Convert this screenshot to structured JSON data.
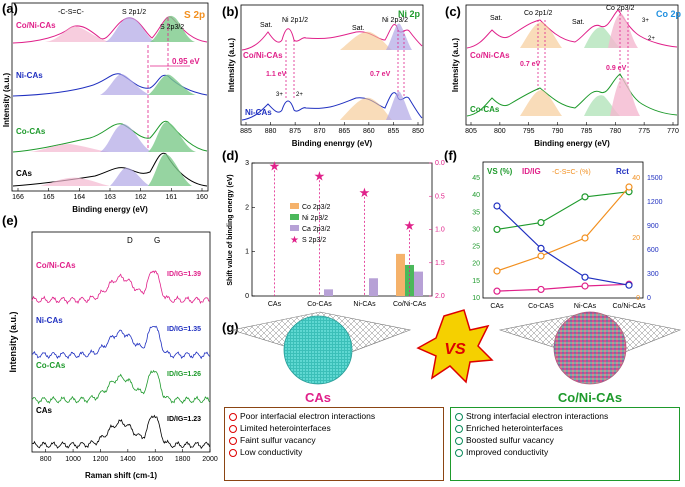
{
  "panel_a": {
    "label": "(a)",
    "title": "S 2p",
    "xlabel": "Binding energy (eV)",
    "ylabel": "Intensity (a.u.)",
    "xticks": [
      "166",
      "165",
      "164",
      "163",
      "162",
      "161",
      "160"
    ],
    "samples": [
      "Co/Ni-CAs",
      "Ni-CAs",
      "Co-CAs",
      "CAs"
    ],
    "peak_labels": [
      "-C-S=C-",
      "S 2p1/2",
      "S 2p3/2"
    ],
    "shift": "0.95 eV"
  },
  "panel_b": {
    "label": "(b)",
    "title": "Ni 2p",
    "xlabel": "Binding enenrgy (eV)",
    "ylabel": "Intensity (a.u.)",
    "xticks": [
      "885",
      "880",
      "875",
      "870",
      "865",
      "860",
      "855",
      "850"
    ],
    "samples": [
      "Co/Ni-CAs",
      "Ni-CAs"
    ],
    "peak_labels": [
      "Ni 2p1/2",
      "Ni 2p3/2",
      "Sat.",
      "3+",
      "2+"
    ],
    "shifts": [
      "1.1 eV",
      "0.7 eV"
    ]
  },
  "panel_c": {
    "label": "(c)",
    "title": "Co 2p",
    "xlabel": "Binding energy (eV)",
    "ylabel": "Intensity (a.u.)",
    "xticks": [
      "805",
      "800",
      "795",
      "790",
      "785",
      "780",
      "775",
      "770"
    ],
    "samples": [
      "Co/Ni-CAs",
      "Co-CAs"
    ],
    "peak_labels": [
      "Co 2p1/2",
      "Co 2p3/2",
      "Sat.",
      "3+",
      "2+"
    ],
    "shifts": [
      "0.7 eV",
      "0.9 eV"
    ]
  },
  "chart_data": [
    {
      "type": "bar",
      "panel": "(d)",
      "ylabel": "Shift value of binding energy (eV)",
      "y2label": "",
      "categories": [
        "CAs",
        "Co-CAs",
        "Ni-CAs",
        "Co/Ni-CAs"
      ],
      "ylim": [
        0,
        3
      ],
      "y2lim": [
        2.0,
        0
      ],
      "yticks": [
        "0",
        "1",
        "2",
        "3"
      ],
      "y2ticks": [
        "0.0",
        "0.5",
        "1.0",
        "1.5",
        "2.0"
      ],
      "series": [
        {
          "name": "Co 2p3/2",
          "color": "#f5b26b",
          "values": [
            0,
            0,
            0,
            0.95
          ]
        },
        {
          "name": "Ni 2p3/2",
          "color": "#4bb85b",
          "values": [
            0,
            0,
            0,
            0.7
          ]
        },
        {
          "name": "Ca 2p3/2",
          "color": "#b7a1d6",
          "values": [
            0,
            0.15,
            0.4,
            0.55
          ]
        },
        {
          "name": "S 2p3/2",
          "color": "#e0218a",
          "type": "star",
          "values": [
            0.05,
            0.2,
            0.45,
            0.95
          ]
        }
      ]
    },
    {
      "type": "line",
      "panel": "(f)",
      "categories": [
        "CAs",
        "Co-CAS",
        "Ni-CAs",
        "Co/Ni-CAs"
      ],
      "legend": [
        "VS (%)",
        "ID/IG",
        "-C-S=C- (%)",
        "Rct"
      ],
      "y1lim": [
        10,
        45
      ],
      "y1ticks": [
        "10",
        "15",
        "20",
        "25",
        "30",
        "35",
        "40",
        "45"
      ],
      "y2lim": [
        0,
        40
      ],
      "y2ticks": [
        "0",
        "20",
        "40"
      ],
      "y3lim": [
        0,
        1500
      ],
      "y3ticks": [
        "0",
        "300",
        "600",
        "900",
        "1200",
        "1500"
      ],
      "series": [
        {
          "name": "VS (%)",
          "color": "#1e9a2c",
          "axis": "y1",
          "values": [
            30,
            32,
            39.5,
            41
          ]
        },
        {
          "name": "ID/IG",
          "color": "#e0218a",
          "axis": "y1",
          "values": [
            12,
            12.5,
            13.5,
            14
          ]
        },
        {
          "name": "-C-S=C- (%)",
          "color": "#f29020",
          "axis": "y2",
          "values": [
            9,
            14,
            20,
            37
          ]
        },
        {
          "name": "Rct",
          "color": "#2030c0",
          "axis": "y3",
          "values": [
            1150,
            620,
            260,
            160
          ]
        }
      ]
    },
    {
      "type": "line",
      "panel": "(e)",
      "xlabel": "Raman shift (cm-1)",
      "ylabel": "Intensity (a.u.)",
      "xticks": [
        "800",
        "1000",
        "1200",
        "1400",
        "1600",
        "1800",
        "2000"
      ],
      "xlim": [
        700,
        2000
      ],
      "peaks": [
        "D",
        "G"
      ],
      "series": [
        {
          "name": "Co/Ni-CAs",
          "color": "#e0218a",
          "ratio": "ID/IG=1.39",
          "value": 1.39
        },
        {
          "name": "Ni-CAs",
          "color": "#2030c0",
          "ratio": "ID/IG=1.35",
          "value": 1.35
        },
        {
          "name": "Co-CAs",
          "color": "#1e9a2c",
          "ratio": "ID/IG=1.26",
          "value": 1.26
        },
        {
          "name": "CAs",
          "color": "#000000",
          "ratio": "ID/IG=1.23",
          "value": 1.23
        }
      ]
    }
  ],
  "panel_d_labels": {
    "label": "(d)",
    "star_legend": "S 2p3/2"
  },
  "panel_e_labels": {
    "label": "(e)"
  },
  "panel_f_labels": {
    "label": "(f)",
    "left_axis": "VS (%)",
    "mid": "ID/IG",
    "css": "-C-S=C- (%)",
    "rct": "Rct"
  },
  "panel_g": {
    "label": "(g)",
    "vs": "VS",
    "left_name": "CAs",
    "right_name": "Co/Ni-CAs",
    "left_points": [
      "Poor interfacial electron interactions",
      "Limited heterointerfaces",
      "Faint sulfur vacancy",
      "Low conductivity"
    ],
    "right_points": [
      "Strong interfacial electron interactions",
      "Enriched  heterointerfaces",
      "Boosted sulfur vacancy",
      "Improved conductivity"
    ]
  }
}
